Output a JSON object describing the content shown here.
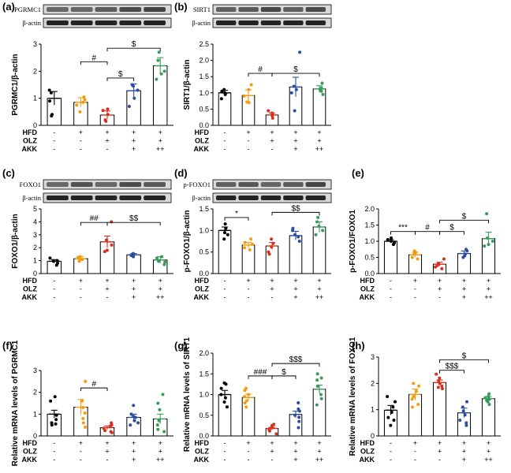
{
  "figure": {
    "conditions": {
      "rows": [
        "HFD",
        "OLZ",
        "AKK"
      ],
      "values": [
        [
          "-",
          "+",
          "+",
          "+",
          "+"
        ],
        [
          "-",
          "-",
          "+",
          "+",
          "+"
        ],
        [
          "-",
          "-",
          "-",
          "+",
          "++"
        ]
      ]
    },
    "colors": {
      "dots": [
        "#000000",
        "#f39c12",
        "#d7301f",
        "#2b4ea2",
        "#3a9a5b"
      ],
      "bar_edge": "#000000",
      "sem": [
        "#000000",
        "#f39c12",
        "#d7301f",
        "#2b4ea2",
        "#3a9a5b"
      ]
    },
    "blots": {
      "a": {
        "top": "PGRMC1",
        "bottom": "β-actin"
      },
      "b": {
        "top": "SIRT1",
        "bottom": "β-actin"
      },
      "c": {
        "top": "FOXO1",
        "bottom": "β-actin"
      },
      "d": {
        "top": "p-FOXO1",
        "bottom": "β-actin"
      }
    }
  },
  "chart_data": [
    {
      "panel": "(a)",
      "type": "bar",
      "ylabel": "PGRMC1/β-actin",
      "ylim": [
        0,
        3
      ],
      "yticks": [
        "0",
        "1",
        "2",
        "3"
      ],
      "values": [
        1.0,
        0.85,
        0.38,
        1.28,
        2.2
      ],
      "sem": [
        0.25,
        0.17,
        0.15,
        0.25,
        0.3
      ],
      "points": [
        [
          1.3,
          1.2,
          0.9,
          0.4,
          0.35
        ],
        [
          0.95,
          0.85,
          0.75,
          0.5,
          1.05
        ],
        [
          0.55,
          0.4,
          0.15,
          0.2,
          0.6
        ],
        [
          1.0,
          1.45,
          1.5,
          1.3,
          0.7
        ],
        [
          2.7,
          2.4,
          2.0,
          1.9,
          1.7
        ]
      ],
      "brackets": [
        {
          "from": 1,
          "to": 2,
          "level": 2.35,
          "label": "#"
        },
        {
          "from": 2,
          "to": 3,
          "level": 1.75,
          "label": "$"
        },
        {
          "from": 2,
          "to": 4,
          "level": 2.85,
          "label": "$"
        }
      ]
    },
    {
      "panel": "(b)",
      "type": "bar",
      "ylabel": "SIRT1/β-actin",
      "ylim": [
        0,
        2.5
      ],
      "yticks": [
        "0.0",
        "0.5",
        "1.0",
        "1.5",
        "2.0",
        "2.5"
      ],
      "values": [
        1.0,
        0.92,
        0.32,
        1.18,
        1.12
      ],
      "sem": [
        0.08,
        0.17,
        0.06,
        0.3,
        0.1
      ],
      "points": [
        [
          1.05,
          1.0,
          0.95,
          0.82,
          1.1
        ],
        [
          0.72,
          1.1,
          0.7,
          1.25,
          0.9
        ],
        [
          0.35,
          0.3,
          0.22,
          0.45,
          0.38
        ],
        [
          2.25,
          1.0,
          0.45,
          1.2,
          1.1
        ],
        [
          1.3,
          1.1,
          0.95,
          1.15,
          1.05
        ]
      ],
      "brackets": [
        {
          "from": 1,
          "to": 2,
          "level": 1.6,
          "label": "#"
        },
        {
          "from": 2,
          "to": 4,
          "level": 1.6,
          "label": "$"
        }
      ]
    },
    {
      "panel": "(c)",
      "type": "bar",
      "ylabel": "FOXO1/β-actin",
      "ylim": [
        0,
        5
      ],
      "yticks": [
        "0",
        "1",
        "2",
        "3",
        "4",
        "5"
      ],
      "values": [
        0.95,
        1.15,
        2.45,
        1.45,
        1.05
      ],
      "sem": [
        0.13,
        0.18,
        0.45,
        0.1,
        0.25
      ],
      "points": [
        [
          1.0,
          0.8,
          0.65,
          1.2,
          0.95
        ],
        [
          1.3,
          1.0,
          1.1,
          1.25,
          0.95
        ],
        [
          4.0,
          2.6,
          2.2,
          1.8,
          1.7
        ],
        [
          1.55,
          1.4,
          1.3,
          1.5,
          1.45
        ],
        [
          1.3,
          0.9,
          0.7,
          1.2,
          0.95
        ]
      ],
      "brackets": [
        {
          "from": 1,
          "to": 2,
          "level": 3.95,
          "label": "##"
        },
        {
          "from": 2,
          "to": 4,
          "level": 3.95,
          "label": "$$"
        }
      ]
    },
    {
      "panel": "(d)",
      "type": "bar",
      "ylabel": "p-FOXO1/β-actin",
      "ylim": [
        0,
        1.5
      ],
      "yticks": [
        "0.0",
        "0.5",
        "1.0",
        "1.5"
      ],
      "values": [
        1.0,
        0.66,
        0.64,
        0.88,
        1.08
      ],
      "sem": [
        0.08,
        0.06,
        0.08,
        0.1,
        0.12
      ],
      "points": [
        [
          1.15,
          0.9,
          0.95,
          1.05,
          0.8
        ],
        [
          0.55,
          0.6,
          0.72,
          0.8,
          0.68
        ],
        [
          0.8,
          0.7,
          0.5,
          0.45,
          0.62
        ],
        [
          1.0,
          0.75,
          0.9,
          1.05,
          0.85
        ],
        [
          1.3,
          1.2,
          1.0,
          0.9,
          1.1
        ]
      ],
      "brackets": [
        {
          "from": 0,
          "to": 1,
          "level": 1.3,
          "label": "*"
        },
        {
          "from": 2,
          "to": 4,
          "level": 1.42,
          "label": "$$"
        }
      ]
    },
    {
      "panel": "(e)",
      "type": "bar",
      "ylabel": "p-FOXO1/FOXO1",
      "ylim": [
        0,
        2.0
      ],
      "yticks": [
        "0.0",
        "0.5",
        "1.0",
        "1.5",
        "2.0"
      ],
      "values": [
        1.0,
        0.58,
        0.29,
        0.62,
        1.08
      ],
      "sem": [
        0.05,
        0.08,
        0.06,
        0.08,
        0.2
      ],
      "points": [
        [
          1.05,
          0.95,
          1.0,
          0.9,
          1.1
        ],
        [
          0.7,
          0.5,
          0.45,
          0.62,
          0.65
        ],
        [
          0.45,
          0.3,
          0.2,
          0.15,
          0.25
        ],
        [
          0.75,
          0.55,
          0.6,
          0.7,
          0.5
        ],
        [
          1.85,
          1.1,
          0.85,
          0.9,
          1.0
        ]
      ],
      "brackets": [
        {
          "from": 0,
          "to": 1,
          "level": 1.3,
          "label": "***"
        },
        {
          "from": 1,
          "to": 2,
          "level": 1.3,
          "label": "#"
        },
        {
          "from": 2,
          "to": 3,
          "level": 1.3,
          "label": "$"
        },
        {
          "from": 2,
          "to": 4,
          "level": 1.65,
          "label": "$"
        }
      ]
    },
    {
      "panel": "(f)",
      "type": "bar",
      "ylabel": "Relative mRNA levels of PGRMC1",
      "ylim": [
        0,
        3
      ],
      "yticks": [
        "0",
        "1",
        "2",
        "3"
      ],
      "values": [
        1.0,
        1.32,
        0.38,
        0.85,
        0.78
      ],
      "sem": [
        0.18,
        0.35,
        0.08,
        0.15,
        0.22
      ],
      "points": [
        [
          1.8,
          1.6,
          0.95,
          0.75,
          0.55,
          0.6,
          0.5
        ],
        [
          2.5,
          1.6,
          1.3,
          1.05,
          0.8,
          0.6,
          0.4
        ],
        [
          0.6,
          0.5,
          0.45,
          0.35,
          0.25,
          0.2,
          0.15
        ],
        [
          1.4,
          1.0,
          0.9,
          0.85,
          0.7,
          0.6,
          0.5
        ],
        [
          1.9,
          1.5,
          1.2,
          0.7,
          0.5,
          0.3,
          0.2
        ]
      ],
      "brackets": [
        {
          "from": 1,
          "to": 2,
          "level": 2.2,
          "label": "#"
        }
      ]
    },
    {
      "panel": "(g)",
      "type": "bar",
      "ylabel": "Relative mRNA levels of SIRT1",
      "ylim": [
        0,
        2.0
      ],
      "yticks": [
        "0.0",
        "0.5",
        "1.0",
        "1.5",
        "2.0"
      ],
      "values": [
        1.0,
        0.93,
        0.18,
        0.52,
        1.13
      ],
      "sem": [
        0.1,
        0.08,
        0.03,
        0.08,
        0.1
      ],
      "points": [
        [
          1.28,
          1.25,
          1.15,
          1.0,
          0.92,
          0.82,
          0.7
        ],
        [
          1.15,
          1.1,
          1.0,
          0.95,
          0.85,
          0.8,
          0.7
        ],
        [
          0.28,
          0.25,
          0.2,
          0.18,
          0.15,
          0.12,
          0.05
        ],
        [
          0.8,
          0.65,
          0.6,
          0.5,
          0.45,
          0.35,
          0.2
        ],
        [
          1.5,
          1.4,
          1.35,
          1.2,
          1.0,
          0.9,
          0.75
        ]
      ],
      "brackets": [
        {
          "from": 1,
          "to": 2,
          "level": 1.45,
          "label": "###"
        },
        {
          "from": 2,
          "to": 3,
          "level": 1.45,
          "label": "$"
        },
        {
          "from": 2,
          "to": 4,
          "level": 1.75,
          "label": "$$$"
        }
      ]
    },
    {
      "panel": "(h)",
      "type": "bar",
      "ylabel": "Relative mRNA levels of FOXO1",
      "ylim": [
        0,
        3
      ],
      "yticks": [
        "0",
        "1",
        "2",
        "3"
      ],
      "values": [
        0.98,
        1.58,
        2.03,
        0.88,
        1.42
      ],
      "sem": [
        0.18,
        0.2,
        0.1,
        0.18,
        0.08
      ],
      "points": [
        [
          1.5,
          1.3,
          1.1,
          0.9,
          0.7,
          0.6,
          0.4
        ],
        [
          2.0,
          1.9,
          1.7,
          1.5,
          1.4,
          1.2,
          1.1
        ],
        [
          2.35,
          2.2,
          2.1,
          2.0,
          1.9,
          1.85,
          1.8
        ],
        [
          1.3,
          1.1,
          0.95,
          0.8,
          0.6,
          0.5,
          0.4
        ],
        [
          1.6,
          1.5,
          1.45,
          1.4,
          1.35,
          1.3,
          1.2
        ]
      ],
      "brackets": [
        {
          "from": 2,
          "to": 3,
          "level": 2.5,
          "label": "$$$"
        },
        {
          "from": 2,
          "to": 4,
          "level": 2.9,
          "label": "$"
        }
      ]
    }
  ]
}
